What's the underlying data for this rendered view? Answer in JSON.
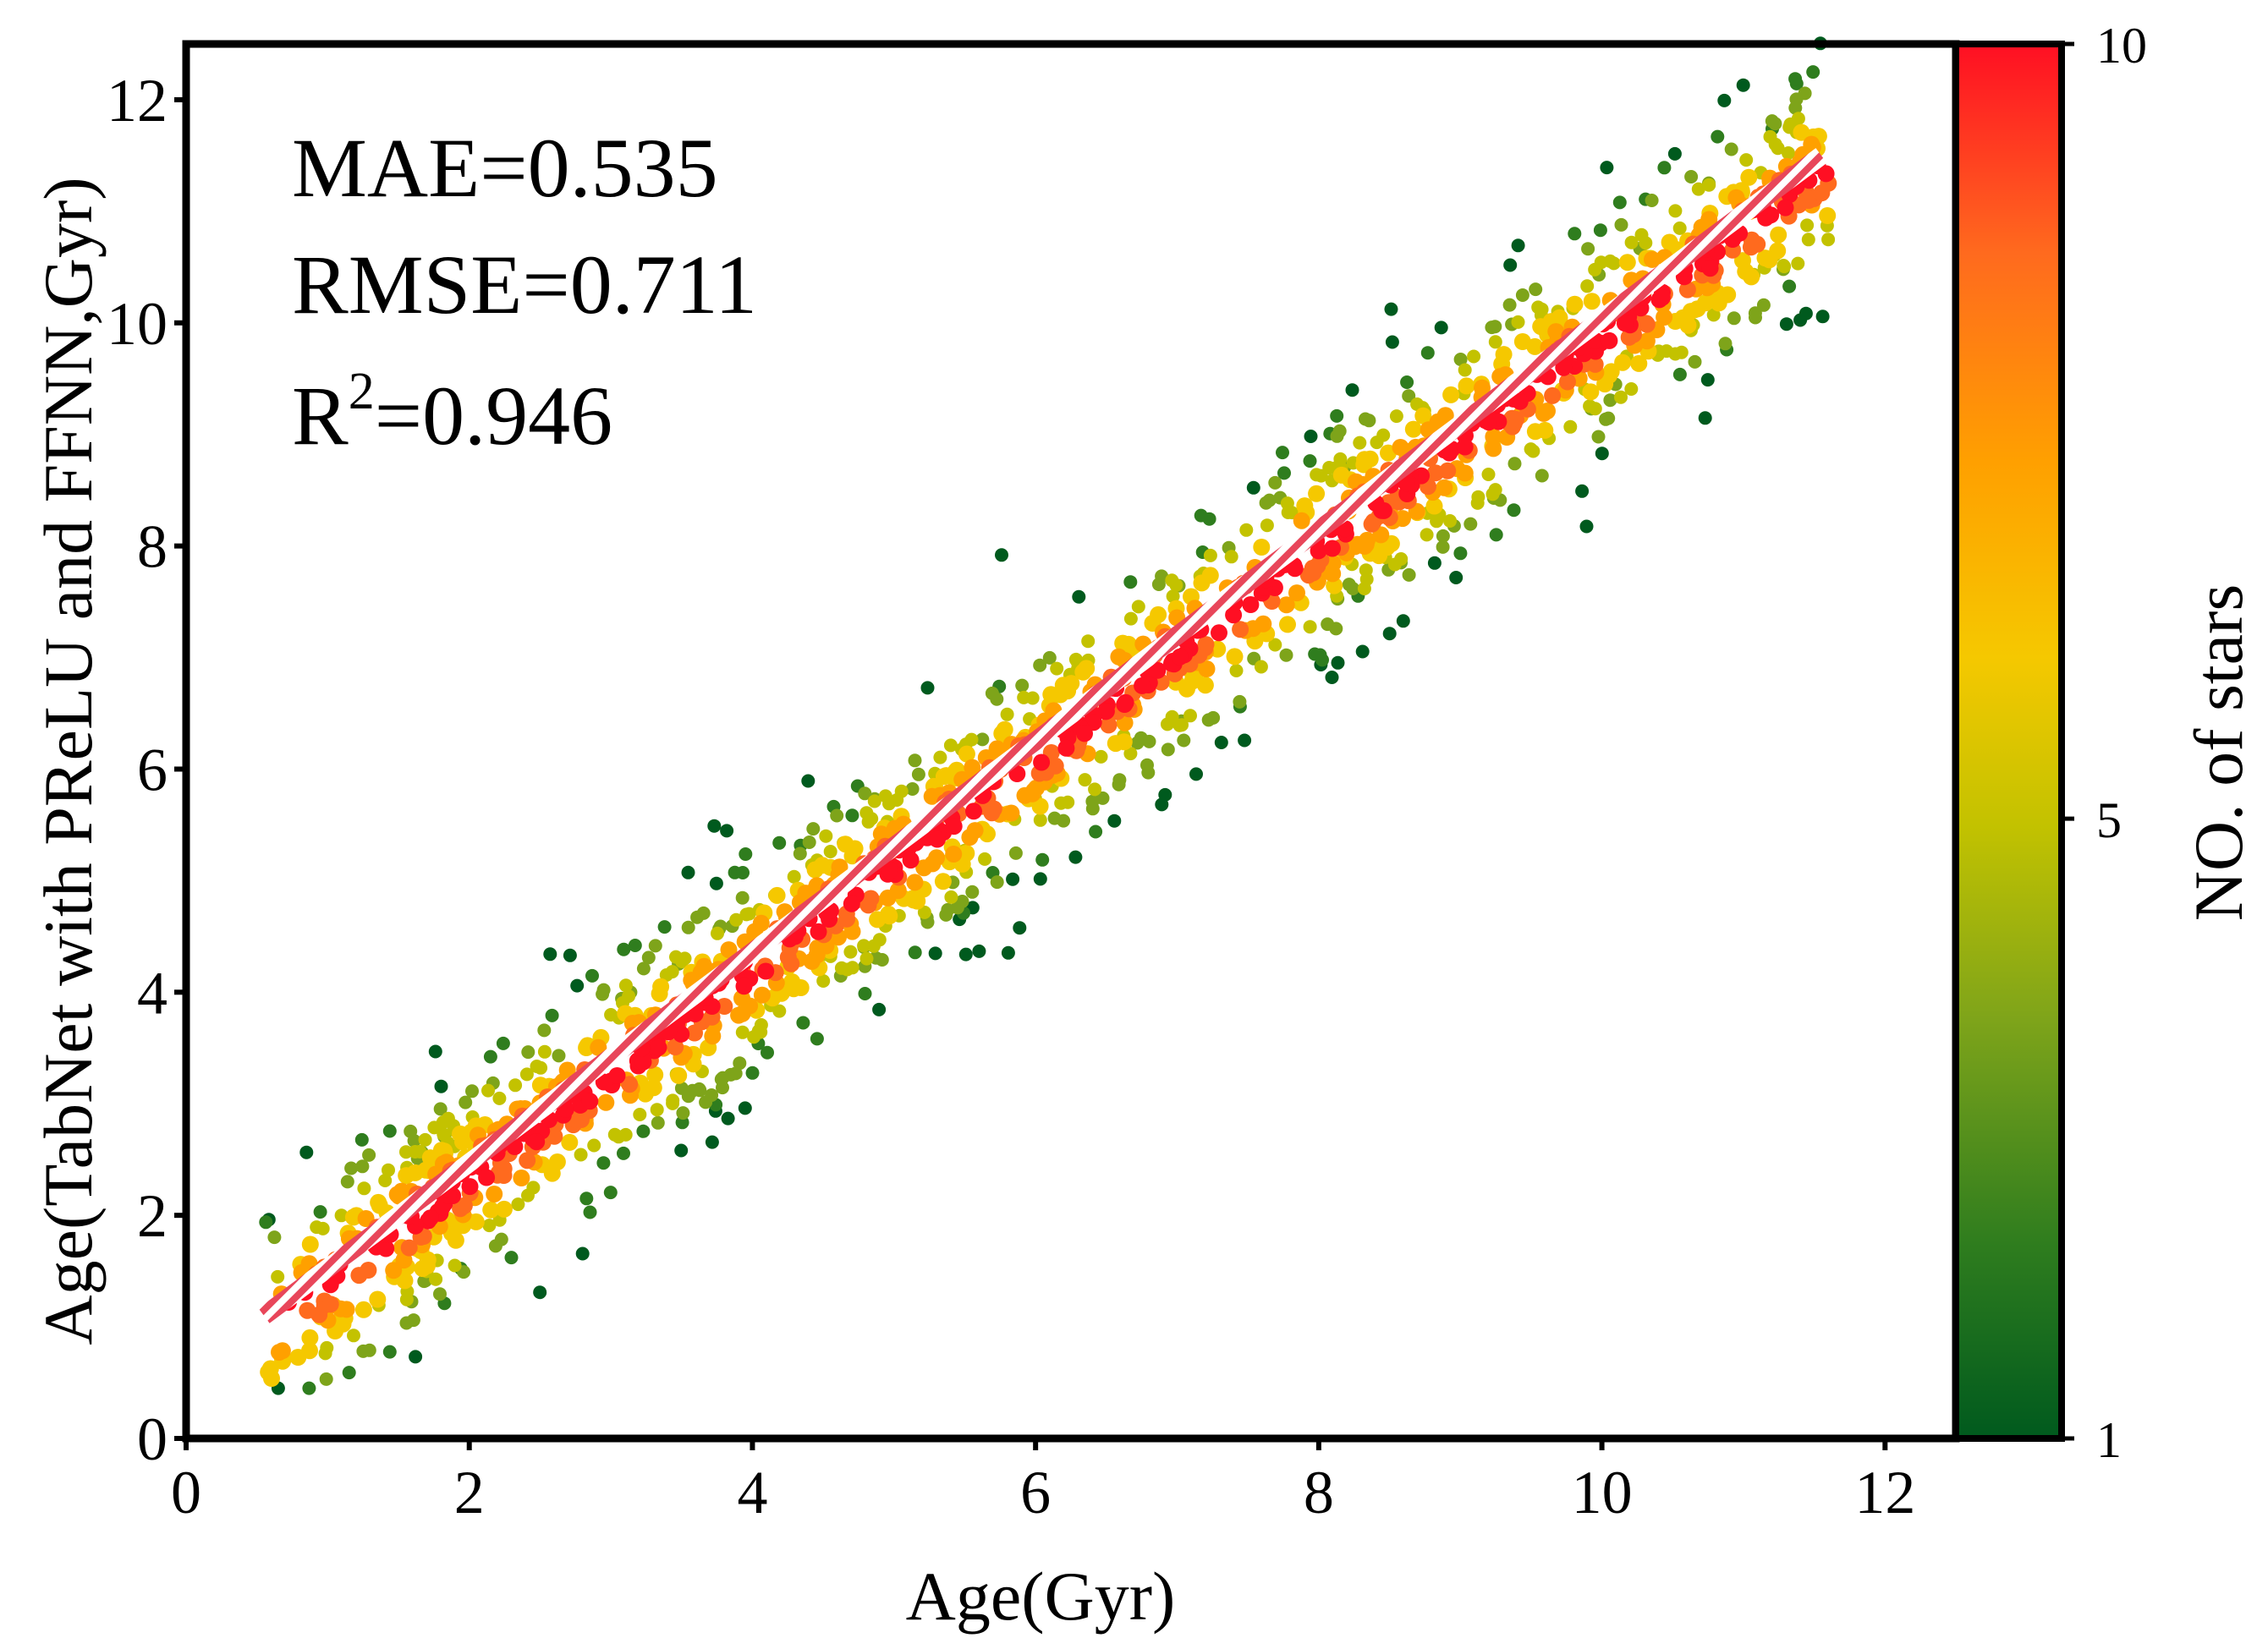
{
  "chart_data": {
    "type": "scatter",
    "xlabel": "Age(Gyr)",
    "ylabel": "Age(TabNet with PReLU and FFNN,Gyr)",
    "xlim": [
      0,
      12.5
    ],
    "ylim": [
      0,
      12.5
    ],
    "xticks": [
      0,
      2,
      4,
      6,
      8,
      10,
      12
    ],
    "yticks": [
      0,
      2,
      4,
      6,
      8,
      10,
      12
    ],
    "xtick_labels": [
      "0",
      "2",
      "4",
      "6",
      "8",
      "10",
      "12"
    ],
    "ytick_labels": [
      "0",
      "2",
      "4",
      "6",
      "8",
      "10",
      "12"
    ],
    "grid": false,
    "stats": {
      "mae": "MAE=0.535",
      "rmse": "RMSE=0.711",
      "r2_prefix": "R",
      "r2_sup": "2",
      "r2_value": "=0.946"
    },
    "colorbar": {
      "label": "NO. of stars",
      "min": 1,
      "max": 10,
      "ticks": [
        1,
        5,
        10
      ],
      "tick_labels": [
        "1",
        "5",
        "10"
      ],
      "colors": [
        "#005a1e",
        "#2f7d1e",
        "#7ea41a",
        "#c3c200",
        "#f5c800",
        "#ffa000",
        "#ff6a1e",
        "#ff0f23"
      ]
    },
    "fit_line": {
      "x": [
        0.55,
        11.55
      ],
      "y": [
        1.1,
        11.5
      ],
      "color": "#e8465a",
      "style": "hatched"
    },
    "points_summary": {
      "count_approx": 1600,
      "relation": "prediction ≈ true age with scatter",
      "scatter_sd_gyr": 0.7,
      "x_range": [
        0.55,
        11.6
      ]
    }
  }
}
